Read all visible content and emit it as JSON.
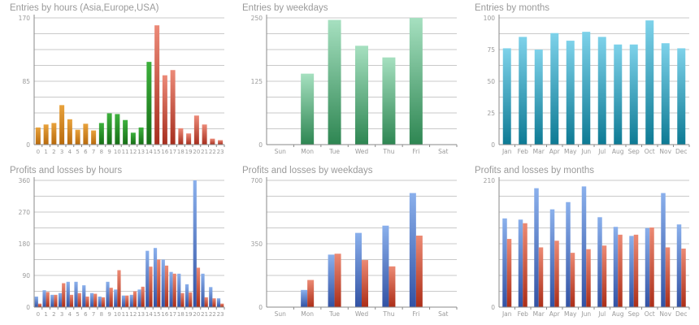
{
  "colors": {
    "grid": "#c9c9c9",
    "axis": "#8a8a8a",
    "tick": "#9a9a9a",
    "orange": [
      "#e8a23c",
      "#b86a0c"
    ],
    "green": [
      "#3db13d",
      "#166e16"
    ],
    "red": [
      "#ec8a78",
      "#a62e1e"
    ],
    "mint": [
      "#a6e0c0",
      "#2e8652"
    ],
    "teal": [
      "#7ed2ea",
      "#0d7a94"
    ],
    "blue": [
      "#8ab0ec",
      "#3252a4"
    ],
    "redbar": [
      "#ec8a74",
      "#ac2e18"
    ]
  },
  "chart_data": [
    {
      "type": "bar",
      "title": "Entries by hours (Asia,Europe,USA)",
      "categories": [
        "0",
        "1",
        "2",
        "3",
        "4",
        "5",
        "6",
        "7",
        "8",
        "9",
        "10",
        "11",
        "12",
        "13",
        "14",
        "15",
        "16",
        "17",
        "18",
        "19",
        "20",
        "21",
        "22",
        "23"
      ],
      "values": [
        23,
        27,
        29,
        53,
        34,
        20,
        28,
        19,
        29,
        42,
        41,
        33,
        16,
        23,
        111,
        160,
        93,
        100,
        22,
        15,
        39,
        27,
        8,
        6
      ],
      "ylim": [
        0,
        170
      ],
      "yticks": [
        0,
        85,
        170
      ],
      "colors": [
        "orange",
        "orange",
        "orange",
        "orange",
        "orange",
        "orange",
        "orange",
        "orange",
        "green",
        "green",
        "green",
        "green",
        "green",
        "green",
        "green",
        "red",
        "red",
        "red",
        "red",
        "red",
        "red",
        "red",
        "red",
        "red"
      ]
    },
    {
      "type": "bar",
      "title": "Entries by weekdays",
      "categories": [
        "Sun",
        "Mon",
        "Tue",
        "Wed",
        "Thu",
        "Fri",
        "Sat"
      ],
      "values": [
        0,
        140,
        246,
        195,
        172,
        250,
        0
      ],
      "ylim": [
        0,
        250
      ],
      "yticks": [
        0,
        125,
        250
      ],
      "colors": [
        "mint",
        "mint",
        "mint",
        "mint",
        "mint",
        "mint",
        "mint"
      ]
    },
    {
      "type": "bar",
      "title": "Entries by months",
      "categories": [
        "Jan",
        "Feb",
        "Mar",
        "Apr",
        "May",
        "Jun",
        "Jul",
        "Aug",
        "Sep",
        "Oct",
        "Nov",
        "Dec"
      ],
      "values": [
        76,
        85,
        75,
        88,
        82,
        89,
        85,
        79,
        79,
        98,
        80,
        76
      ],
      "ylim": [
        0,
        100
      ],
      "yticks": [
        0,
        25,
        50,
        75,
        100
      ],
      "colors": [
        "teal",
        "teal",
        "teal",
        "teal",
        "teal",
        "teal",
        "teal",
        "teal",
        "teal",
        "teal",
        "teal",
        "teal"
      ]
    },
    {
      "type": "bar",
      "title": "Profits and losses by hours",
      "categories": [
        "0",
        "1",
        "2",
        "3",
        "4",
        "5",
        "6",
        "7",
        "8",
        "9",
        "10",
        "11",
        "12",
        "13",
        "14",
        "15",
        "16",
        "17",
        "18",
        "19",
        "20",
        "21",
        "22",
        "23"
      ],
      "series": [
        {
          "values": [
            30,
            48,
            35,
            40,
            72,
            72,
            62,
            40,
            30,
            72,
            50,
            33,
            35,
            50,
            160,
            168,
            135,
            100,
            95,
            65,
            360,
            95,
            57,
            25
          ],
          "color": "blue"
        },
        {
          "values": [
            10,
            43,
            35,
            68,
            35,
            40,
            30,
            38,
            28,
            55,
            105,
            33,
            45,
            58,
            115,
            135,
            118,
            95,
            40,
            42,
            112,
            28,
            25,
            10
          ],
          "color": "redbar"
        }
      ],
      "ylim": [
        0,
        360
      ],
      "yticks": [
        0,
        90,
        180,
        270,
        360
      ]
    },
    {
      "type": "bar",
      "title": "Profits and losses by weekdays",
      "categories": [
        "Sun",
        "Mon",
        "Tue",
        "Wed",
        "Thu",
        "Fri",
        "Sat"
      ],
      "series": [
        {
          "values": [
            0,
            95,
            290,
            410,
            450,
            630,
            0
          ],
          "color": "blue"
        },
        {
          "values": [
            0,
            150,
            295,
            260,
            225,
            395,
            0
          ],
          "color": "redbar"
        }
      ],
      "ylim": [
        0,
        700
      ],
      "yticks": [
        0,
        350,
        700
      ]
    },
    {
      "type": "bar",
      "title": "Profits and losses by months",
      "categories": [
        "Jan",
        "Feb",
        "Mar",
        "Apr",
        "May",
        "Jun",
        "Jul",
        "Aug",
        "Sep",
        "Oct",
        "Nov",
        "Dec"
      ],
      "series": [
        {
          "values": [
            147,
            145,
            197,
            162,
            174,
            200,
            149,
            133,
            118,
            131,
            189,
            137
          ],
          "color": "blue"
        },
        {
          "values": [
            113,
            139,
            99,
            110,
            90,
            96,
            102,
            120,
            120,
            132,
            99,
            97
          ],
          "color": "redbar"
        }
      ],
      "ylim": [
        0,
        210
      ],
      "yticks": [
        0,
        210
      ]
    }
  ]
}
